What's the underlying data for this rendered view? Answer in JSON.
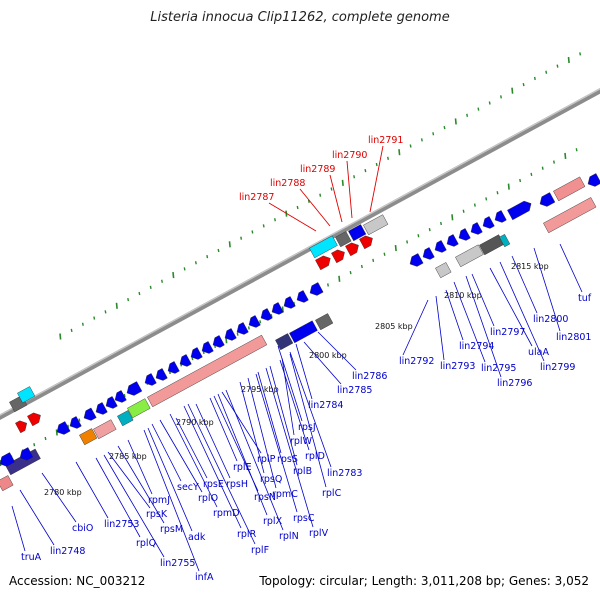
{
  "title": "Listeria innocua Clip11262, complete genome",
  "accession": "Accession: NC_003212",
  "summary": "Topology: circular; Length: 3,011,208 bp; Genes: 3,052",
  "colors": {
    "highlight_label": "#e00000",
    "gene_label": "#0000cc",
    "backbone": "#8c8c8c",
    "tick": "#2a8a2a"
  },
  "kbp_labels": [
    "2780 kbp",
    "2785 kbp",
    "2790 kbp",
    "2795 kbp",
    "2800 kbp",
    "2805 kbp",
    "2810 kbp",
    "2815 kbp"
  ],
  "highlighted_genes": [
    "lin2787",
    "lin2788",
    "lin2789",
    "lin2790",
    "lin2791"
  ],
  "gene_labels": [
    "truA",
    "lin2748",
    "cbiO",
    "lin2753",
    "rplQ",
    "lin2755",
    "rpsK",
    "rpsM",
    "rpmJ",
    "adk",
    "infA",
    "secY",
    "rplO",
    "rpmD",
    "rplR",
    "rplF",
    "rpsE",
    "rpsH",
    "rplE",
    "rpsN",
    "rplX",
    "rplN",
    "rplP",
    "rpsQ",
    "rpmC",
    "rpsC",
    "rplV",
    "rpsS",
    "rplB",
    "rplD",
    "rplW",
    "rpsJ",
    "rplC",
    "lin2783",
    "lin2784",
    "lin2785",
    "lin2786",
    "lin2792",
    "lin2793",
    "lin2794",
    "lin2795",
    "lin2796",
    "lin2797",
    "ulaA",
    "lin2799",
    "lin2800",
    "lin2801",
    "tuf"
  ]
}
